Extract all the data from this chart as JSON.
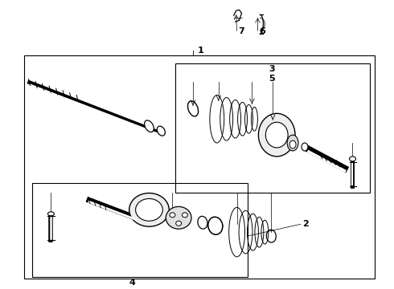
{
  "bg_color": "#ffffff",
  "line_color": "#000000",
  "fig_width": 4.9,
  "fig_height": 3.6,
  "label_fontsize": 8
}
